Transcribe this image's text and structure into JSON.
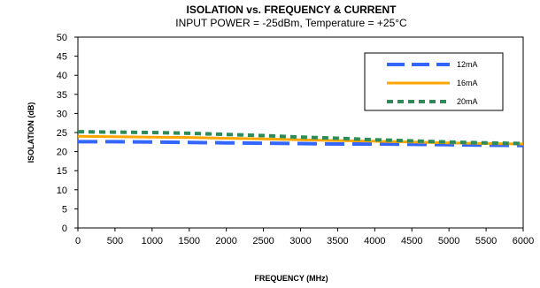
{
  "chart_data": {
    "type": "line",
    "title": "ISOLATION vs. FREQUENCY & CURRENT",
    "subtitle": "INPUT POWER = -25dBm, Temperature = +25°C",
    "xlabel": "FREQUENCY (MHz)",
    "ylabel": "ISOLATION (dB)",
    "xlim": [
      0,
      6000
    ],
    "ylim": [
      0,
      50
    ],
    "xticks": [
      0,
      500,
      1000,
      1500,
      2000,
      2500,
      3000,
      3500,
      4000,
      4500,
      5000,
      5500,
      6000
    ],
    "yticks": [
      0,
      5,
      10,
      15,
      20,
      25,
      30,
      35,
      40,
      45,
      50
    ],
    "grid": false,
    "legend_position": "top-right",
    "x": [
      0,
      500,
      1000,
      1500,
      2000,
      2500,
      3000,
      3500,
      4000,
      4500,
      5000,
      5500,
      6000
    ],
    "series": [
      {
        "name": "12mA",
        "color": "#3366ff",
        "style": "long-dash",
        "values": [
          22.6,
          22.6,
          22.5,
          22.4,
          22.3,
          22.2,
          22.1,
          22.0,
          22.0,
          21.9,
          21.8,
          21.7,
          21.6
        ]
      },
      {
        "name": "16mA",
        "color": "#ffa500",
        "style": "solid",
        "values": [
          24.0,
          23.9,
          23.8,
          23.7,
          23.5,
          23.3,
          23.1,
          22.9,
          22.7,
          22.5,
          22.3,
          22.1,
          22.0
        ]
      },
      {
        "name": "20mA",
        "color": "#2e8b57",
        "style": "short-dash",
        "values": [
          25.2,
          25.1,
          25.0,
          24.8,
          24.5,
          24.2,
          23.8,
          23.5,
          23.1,
          22.8,
          22.5,
          22.3,
          22.1
        ]
      }
    ]
  }
}
